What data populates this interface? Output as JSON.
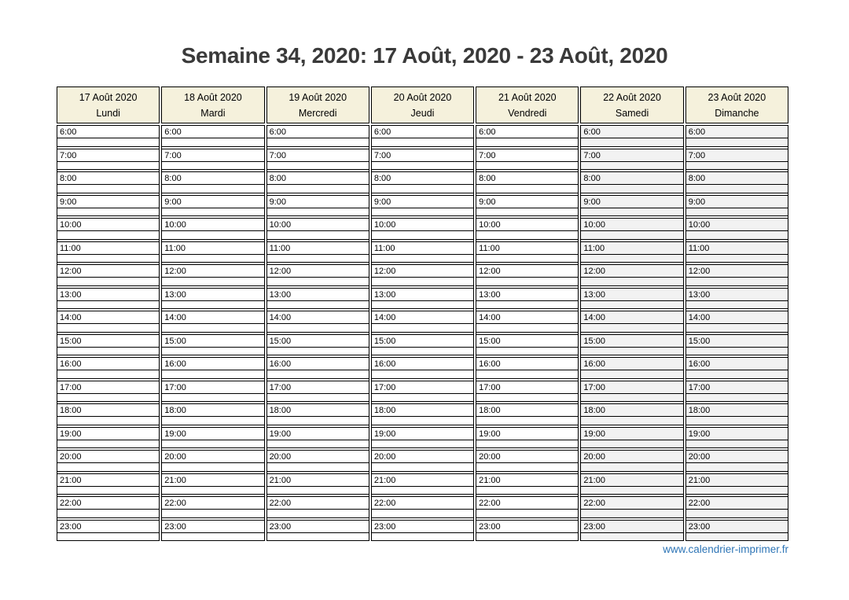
{
  "page": {
    "title": "Semaine 34, 2020: 17 Août, 2020 - 23 Août, 2020",
    "footer_link": "www.calendrier-imprimer.fr"
  },
  "calendar": {
    "days": [
      {
        "date": "17 Août 2020",
        "name": "Lundi",
        "weekend": false
      },
      {
        "date": "18 Août 2020",
        "name": "Mardi",
        "weekend": false
      },
      {
        "date": "19 Août 2020",
        "name": "Mercredi",
        "weekend": false
      },
      {
        "date": "20 Août 2020",
        "name": "Jeudi",
        "weekend": false
      },
      {
        "date": "21 Août 2020",
        "name": "Vendredi",
        "weekend": false
      },
      {
        "date": "22 Août 2020",
        "name": "Samedi",
        "weekend": true
      },
      {
        "date": "23 Août 2020",
        "name": "Dimanche",
        "weekend": true
      }
    ],
    "times": [
      "6:00",
      "7:00",
      "8:00",
      "9:00",
      "10:00",
      "11:00",
      "12:00",
      "13:00",
      "14:00",
      "15:00",
      "16:00",
      "17:00",
      "18:00",
      "19:00",
      "20:00",
      "21:00",
      "22:00",
      "23:00"
    ]
  },
  "colors": {
    "header_bg": "#f5f1dc",
    "weekend_bg": "#f2f2f2",
    "grid_border": "#000000",
    "title_text": "#3a3a3a",
    "link_blue": "#2e75b6"
  }
}
